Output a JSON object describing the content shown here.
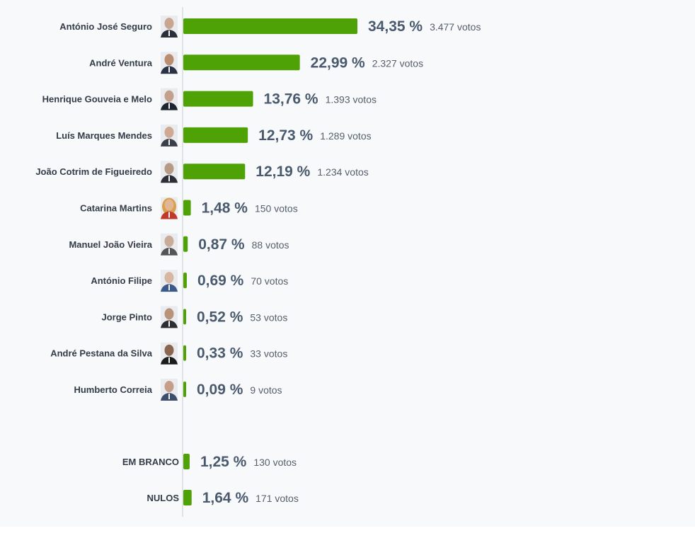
{
  "colors": {
    "bar": "#4ea206",
    "axis": "#c9cdd2",
    "background": "#f8f9fa"
  },
  "chart_data": {
    "type": "bar",
    "orientation": "horizontal",
    "title": "",
    "xlabel": "",
    "ylabel": "",
    "xlim": [
      0,
      34.35
    ],
    "grid": false,
    "series": [
      {
        "values": [
          34.35,
          22.99,
          13.76,
          12.73,
          12.19,
          1.48,
          0.87,
          0.69,
          0.52,
          0.33,
          0.09,
          1.25,
          1.64
        ]
      }
    ],
    "categories": [
      "António José Seguro",
      "André Ventura",
      "Henrique Gouveia e Melo",
      "Luís Marques Mendes",
      "João Cotrim de Figueiredo",
      "Catarina Martins",
      "Manuel João Vieira",
      "António Filipe",
      "Jorge Pinto",
      "André Pestana da Silva",
      "Humberto Correia",
      "EM BRANCO",
      "NULOS"
    ],
    "rows": [
      {
        "name": "António José Seguro",
        "pct": 34.35,
        "pct_label": "34,35 %",
        "votes_label": "3.477 votos",
        "has_photo": true,
        "photo": "photo-seguro-icon",
        "tone": "#c9a48f",
        "suit": "#2a2f3a"
      },
      {
        "name": "André Ventura",
        "pct": 22.99,
        "pct_label": "22,99 %",
        "votes_label": "2.327 votos",
        "has_photo": true,
        "photo": "photo-ventura-icon",
        "tone": "#b98d6f",
        "suit": "#2a3344"
      },
      {
        "name": "Henrique Gouveia e Melo",
        "pct": 13.76,
        "pct_label": "13,76 %",
        "votes_label": "1.393 votos",
        "has_photo": true,
        "photo": "photo-gouveia-melo-icon",
        "tone": "#c4a08b",
        "suit": "#1e2430"
      },
      {
        "name": "Luís Marques Mendes",
        "pct": 12.73,
        "pct_label": "12,73 %",
        "votes_label": "1.289 votos",
        "has_photo": true,
        "photo": "photo-marques-mendes-icon",
        "tone": "#cfa991",
        "suit": "#3a3f4a"
      },
      {
        "name": "João Cotrim de Figueiredo",
        "pct": 12.19,
        "pct_label": "12,19 %",
        "votes_label": "1.234 votos",
        "has_photo": true,
        "photo": "photo-cotrim-figueiredo-icon",
        "tone": "#b79a86",
        "suit": "#2c2f36"
      },
      {
        "name": "Catarina Martins",
        "pct": 1.48,
        "pct_label": "1,48 %",
        "votes_label": "150 votos",
        "has_photo": true,
        "photo": "photo-catarina-martins-icon",
        "tone": "#e2b595",
        "suit": "#c0392b",
        "hair": "#d6a14a"
      },
      {
        "name": "Manuel João Vieira",
        "pct": 0.87,
        "pct_label": "0,87 %",
        "votes_label": "88 votos",
        "has_photo": true,
        "photo": "photo-manuel-joao-vieira-icon",
        "tone": "#c8ab98",
        "suit": "#555555"
      },
      {
        "name": "António Filipe",
        "pct": 0.69,
        "pct_label": "0,69 %",
        "votes_label": "70 votos",
        "has_photo": true,
        "photo": "photo-antonio-filipe-icon",
        "tone": "#d7b7a1",
        "suit": "#3b5a8a"
      },
      {
        "name": "Jorge Pinto",
        "pct": 0.52,
        "pct_label": "0,52 %",
        "votes_label": "53 votos",
        "has_photo": true,
        "photo": "photo-jorge-pinto-icon",
        "tone": "#b8937a",
        "suit": "#2e2e32"
      },
      {
        "name": "André Pestana da Silva",
        "pct": 0.33,
        "pct_label": "0,33 %",
        "votes_label": "33 votos",
        "has_photo": true,
        "photo": "photo-andre-pestana-icon",
        "tone": "#8a6650",
        "suit": "#1c1c1c"
      },
      {
        "name": "Humberto Correia",
        "pct": 0.09,
        "pct_label": "0,09 %",
        "votes_label": "9 votos",
        "has_photo": true,
        "photo": "photo-humberto-correia-icon",
        "tone": "#c69d86",
        "suit": "#3d4f6b"
      },
      {
        "name": "EM BRANCO",
        "pct": 1.25,
        "pct_label": "1,25 %",
        "votes_label": "130 votos",
        "has_photo": false
      },
      {
        "name": "NULOS",
        "pct": 1.64,
        "pct_label": "1,64 %",
        "votes_label": "171 votos",
        "has_photo": false
      }
    ]
  }
}
